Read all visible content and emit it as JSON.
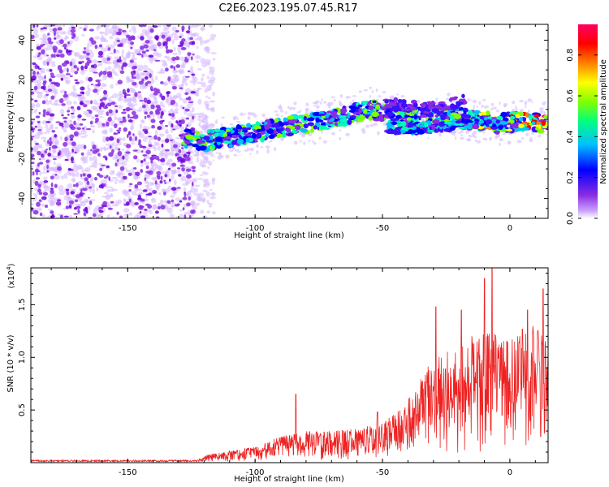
{
  "title": "C2E6.2023.195.07.45.R17",
  "chart_data": [
    {
      "type": "heatmap",
      "xlabel": "Height of straight line (km)",
      "ylabel": "Frequency (Hz)",
      "xlim": [
        -188,
        15
      ],
      "ylim": [
        -50,
        48
      ],
      "xticks": [
        "-150",
        "-100",
        "-50",
        "0"
      ],
      "yticks": [
        "40",
        "20",
        "0",
        "-20",
        "-40"
      ],
      "grid": false,
      "noise_region": {
        "x": [
          -188,
          -122
        ],
        "y": [
          -50,
          48
        ]
      },
      "signal_track": [
        {
          "x": -128,
          "y": -10
        },
        {
          "x": -120,
          "y": -11
        },
        {
          "x": -110,
          "y": -9
        },
        {
          "x": -100,
          "y": -7
        },
        {
          "x": -90,
          "y": -4
        },
        {
          "x": -80,
          "y": -2
        },
        {
          "x": -70,
          "y": 0
        },
        {
          "x": -60,
          "y": 3
        },
        {
          "x": -55,
          "y": 5
        },
        {
          "x": -45,
          "y": 2
        },
        {
          "x": -35,
          "y": 1
        },
        {
          "x": -25,
          "y": 2
        },
        {
          "x": -15,
          "y": 0
        },
        {
          "x": -5,
          "y": -2
        },
        {
          "x": 5,
          "y": -1
        },
        {
          "x": 15,
          "y": -2
        }
      ],
      "secondary_track": [
        {
          "x": -48,
          "y": -4
        },
        {
          "x": -40,
          "y": -5
        },
        {
          "x": -30,
          "y": -4
        },
        {
          "x": -20,
          "y": -3
        },
        {
          "x": -10,
          "y": -1
        },
        {
          "x": -2,
          "y": -2
        }
      ],
      "upper_track": [
        {
          "x": -50,
          "y": 8
        },
        {
          "x": -40,
          "y": 7
        },
        {
          "x": -28,
          "y": 6
        },
        {
          "x": -18,
          "y": 10
        }
      ],
      "colorbar": {
        "label": "Normalized spectral amplitude",
        "range": [
          0,
          0.95
        ],
        "ticks": [
          "0.0",
          "0.2",
          "0.4",
          "0.6",
          "0.8"
        ],
        "colors": [
          "#ffffff",
          "#8a2be2",
          "#0000ff",
          "#00bfff",
          "#00ff80",
          "#80ff00",
          "#ffff00",
          "#ff8000",
          "#ff0000",
          "#ff0060"
        ]
      }
    },
    {
      "type": "line",
      "xlabel": "Height of straight line (km)",
      "ylabel": "SNR (10 * v/v)",
      "scale_note": "(x10",
      "scale_exp": "4",
      "scale_close": ")",
      "xlim": [
        -188,
        15
      ],
      "ylim": [
        0,
        18500
      ],
      "xticks": [
        "-150",
        "-100",
        "-50",
        "0"
      ],
      "yticks": [
        "1.5",
        "1.0",
        "0.5"
      ],
      "grid": false,
      "color": "#ee2222",
      "envelope": [
        {
          "x": -188,
          "y": 0
        },
        {
          "x": -125,
          "y": 200
        },
        {
          "x": -118,
          "y": 800
        },
        {
          "x": -100,
          "y": 1500
        },
        {
          "x": -90,
          "y": 2500
        },
        {
          "x": -80,
          "y": 3000
        },
        {
          "x": -70,
          "y": 3000
        },
        {
          "x": -60,
          "y": 3300
        },
        {
          "x": -50,
          "y": 3800
        },
        {
          "x": -40,
          "y": 6000
        },
        {
          "x": -30,
          "y": 10000
        },
        {
          "x": -20,
          "y": 11000
        },
        {
          "x": -10,
          "y": 13000
        },
        {
          "x": 0,
          "y": 12000
        },
        {
          "x": 10,
          "y": 13500
        },
        {
          "x": 15,
          "y": 11000
        }
      ],
      "peaks": [
        {
          "x": -84,
          "y": 6500
        },
        {
          "x": -52,
          "y": 4800
        },
        {
          "x": -29,
          "y": 14800
        },
        {
          "x": -19,
          "y": 14500
        },
        {
          "x": -10,
          "y": 17500
        },
        {
          "x": -7,
          "y": 18500
        },
        {
          "x": 7,
          "y": 14500
        },
        {
          "x": 13,
          "y": 16500
        }
      ]
    }
  ]
}
